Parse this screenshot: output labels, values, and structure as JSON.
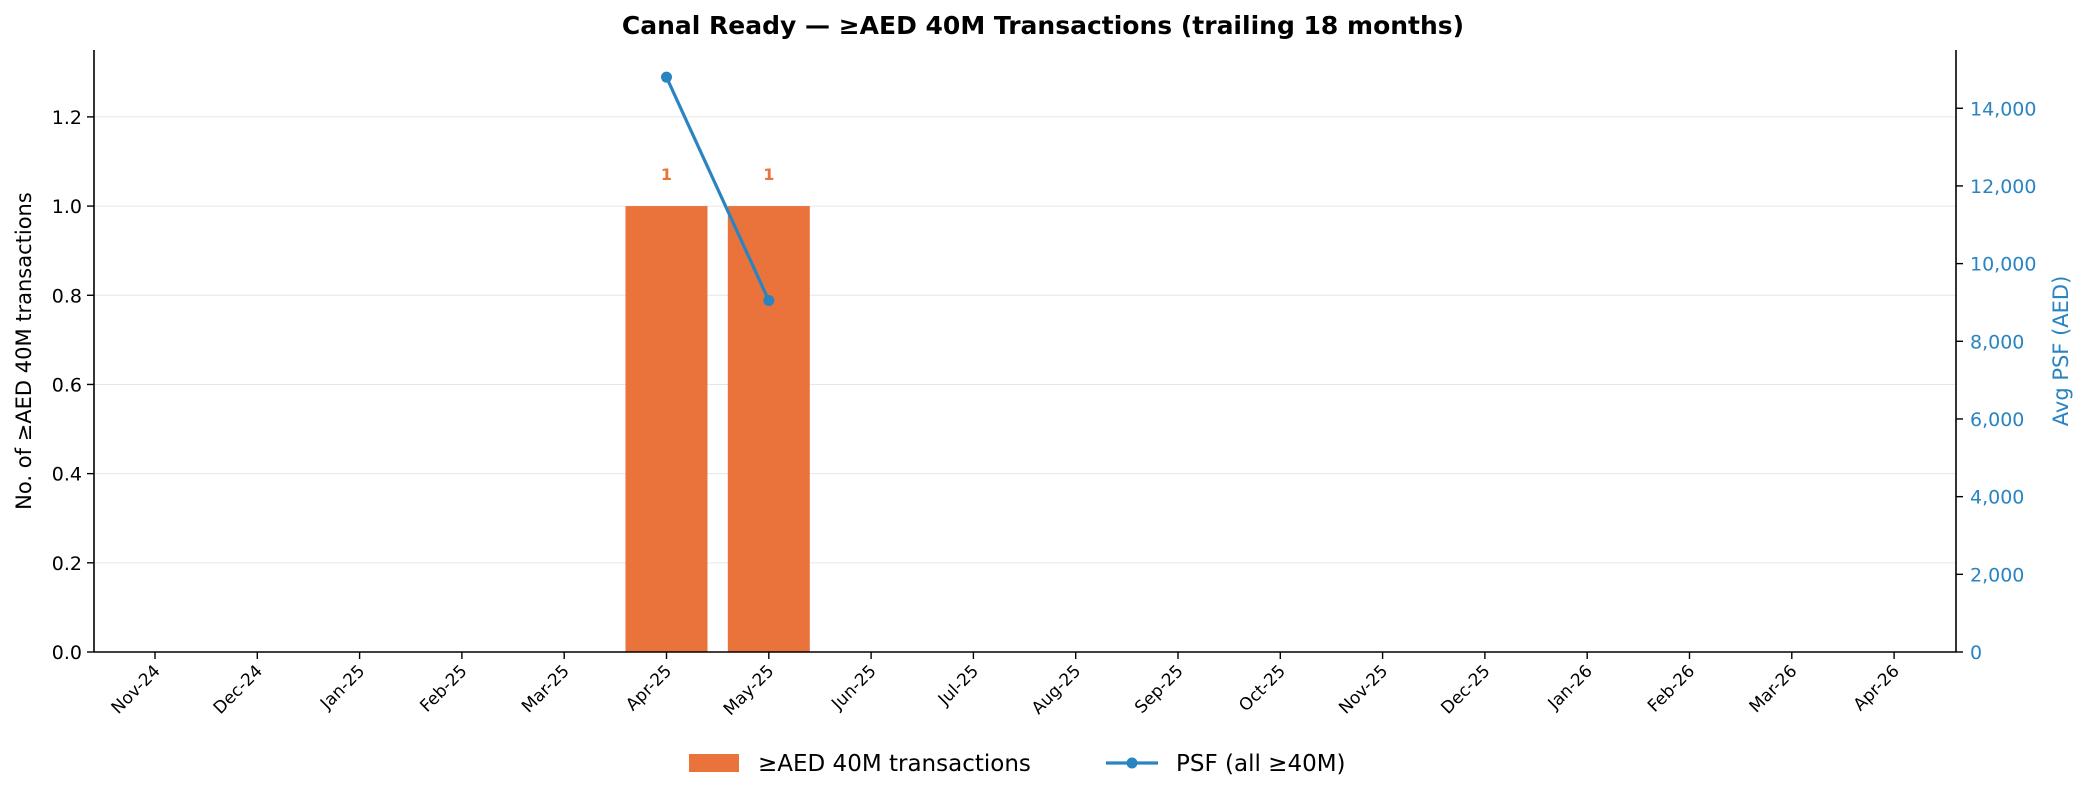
{
  "colors": {
    "bar": "#E9733B",
    "bar_label": "#E9733B",
    "line": "#2A84C1",
    "right_axis": "#2A84C1",
    "axis": "#000000",
    "grid": "#E6E6E6"
  },
  "chart_data": {
    "type": "bar",
    "title": "Canal Ready — ≥AED 40M Transactions (trailing 18 months)",
    "categories": [
      "Nov-24",
      "Dec-24",
      "Jan-25",
      "Feb-25",
      "Mar-25",
      "Apr-25",
      "May-25",
      "Jun-25",
      "Jul-25",
      "Aug-25",
      "Sep-25",
      "Oct-25",
      "Nov-25",
      "Dec-25",
      "Jan-26",
      "Feb-26",
      "Mar-26",
      "Apr-26"
    ],
    "ylabel": "No. of ≥AED 40M transactions",
    "ylim": [
      0,
      1.35
    ],
    "yticks": [
      0.0,
      0.2,
      0.4,
      0.6,
      0.8,
      1.0,
      1.2
    ],
    "ytick_labels": [
      "0.0",
      "0.2",
      "0.4",
      "0.6",
      "0.8",
      "1.0",
      "1.2"
    ],
    "y2label": "Avg PSF (AED)",
    "y2lim": [
      0,
      15500
    ],
    "y2ticks": [
      0,
      2000,
      4000,
      6000,
      8000,
      10000,
      12000,
      14000
    ],
    "y2tick_labels": [
      "0",
      "2,000",
      "4,000",
      "6,000",
      "8,000",
      "10,000",
      "12,000",
      "14,000"
    ],
    "grid": true,
    "legend_position": "bottom-center",
    "series": [
      {
        "name": "≥AED 40M transactions",
        "type": "bar",
        "axis": "left",
        "values": [
          0,
          0,
          0,
          0,
          0,
          1,
          1,
          0,
          0,
          0,
          0,
          0,
          0,
          0,
          0,
          0,
          0,
          0
        ],
        "data_labels": [
          "",
          "",
          "",
          "",
          "",
          "1",
          "1",
          "",
          "",
          "",
          "",
          "",
          "",
          "",
          "",
          "",
          "",
          ""
        ]
      },
      {
        "name": "PSF (all ≥40M)",
        "type": "line",
        "axis": "right",
        "values": [
          null,
          null,
          null,
          null,
          null,
          14800,
          9050,
          null,
          null,
          null,
          null,
          null,
          null,
          null,
          null,
          null,
          null,
          null
        ]
      }
    ]
  }
}
